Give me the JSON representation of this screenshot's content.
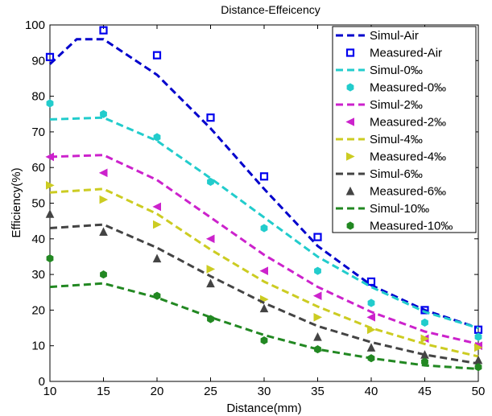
{
  "chart_data": {
    "type": "line",
    "title": "Distance-Effeicency",
    "xlabel": "Distance(mm)",
    "ylabel": "Efficiency(%)",
    "xlim": [
      10,
      50
    ],
    "ylim": [
      0,
      100
    ],
    "xticks": [
      10,
      15,
      20,
      25,
      30,
      35,
      40,
      45,
      50
    ],
    "yticks": [
      0,
      10,
      20,
      30,
      40,
      50,
      60,
      70,
      80,
      90,
      100
    ],
    "grid": false,
    "legend_position": "top-right",
    "series": [
      {
        "name": "Simul-Air",
        "kind": "line",
        "color": "#0000cc",
        "x": [
          10,
          12.5,
          15,
          20,
          25,
          30,
          35,
          40,
          45,
          50
        ],
        "y": [
          89,
          96,
          96,
          86,
          71,
          54,
          38,
          27,
          20,
          15
        ]
      },
      {
        "name": "Measured-Air",
        "kind": "marker",
        "marker": "square",
        "color": "#0000ee",
        "x": [
          10,
          15,
          20,
          25,
          30,
          35,
          40,
          45,
          50
        ],
        "y": [
          91,
          98.5,
          91.5,
          74,
          57.5,
          40.5,
          28,
          20,
          14.5
        ]
      },
      {
        "name": "Simul-0‰",
        "kind": "line",
        "color": "#22cccc",
        "x": [
          10,
          15,
          20,
          25,
          30,
          35,
          40,
          45,
          50
        ],
        "y": [
          73.5,
          74,
          67.5,
          57,
          46,
          35,
          26.5,
          19.5,
          15
        ]
      },
      {
        "name": "Measured-0‰",
        "kind": "marker",
        "marker": "hexagon",
        "color": "#22cccc",
        "x": [
          10,
          15,
          20,
          25,
          30,
          35,
          40,
          45,
          50
        ],
        "y": [
          78,
          75,
          68.5,
          56,
          43,
          31,
          22,
          16.5,
          12.5
        ]
      },
      {
        "name": "Simul-2‰",
        "kind": "line",
        "color": "#cc22cc",
        "x": [
          10,
          15,
          20,
          25,
          30,
          35,
          40,
          45,
          50
        ],
        "y": [
          63,
          63.5,
          56.5,
          46,
          35.5,
          26.5,
          19.5,
          14,
          10.5
        ]
      },
      {
        "name": "Measured-2‰",
        "kind": "marker",
        "marker": "triangle-left",
        "color": "#cc22cc",
        "x": [
          10,
          15,
          20,
          25,
          30,
          35,
          40,
          45,
          50
        ],
        "y": [
          63,
          58.5,
          49,
          40,
          31,
          24,
          18,
          12,
          10
        ]
      },
      {
        "name": "Simul-4‰",
        "kind": "line",
        "color": "#cccc22",
        "x": [
          10,
          15,
          20,
          25,
          30,
          35,
          40,
          45,
          50
        ],
        "y": [
          53,
          54,
          47,
          37,
          28,
          21,
          15,
          10.5,
          7
        ]
      },
      {
        "name": "Measured-4‰",
        "kind": "marker",
        "marker": "triangle-right",
        "color": "#cccc22",
        "x": [
          10,
          15,
          20,
          25,
          30,
          35,
          40,
          45,
          50
        ],
        "y": [
          55,
          51,
          44,
          31.5,
          23,
          18,
          14.5,
          12,
          9.5
        ]
      },
      {
        "name": "Simul-6‰",
        "kind": "line",
        "color": "#444444",
        "x": [
          10,
          15,
          20,
          25,
          30,
          35,
          40,
          45,
          50
        ],
        "y": [
          43,
          44,
          37.5,
          29.5,
          22,
          15.5,
          11,
          7.5,
          5
        ]
      },
      {
        "name": "Measured-6‰",
        "kind": "marker",
        "marker": "triangle-up",
        "color": "#444444",
        "x": [
          10,
          15,
          20,
          25,
          30,
          35,
          40,
          45,
          50
        ],
        "y": [
          47,
          42,
          34.5,
          27.5,
          20.5,
          12.5,
          9.5,
          7.5,
          6
        ]
      },
      {
        "name": "Simul-10‰",
        "kind": "line",
        "color": "#228822",
        "x": [
          10,
          15,
          20,
          25,
          30,
          35,
          40,
          45,
          50
        ],
        "y": [
          26.5,
          27.5,
          23.5,
          18,
          13,
          9,
          6.5,
          4.5,
          3.5
        ]
      },
      {
        "name": "Measured-10‰",
        "kind": "marker",
        "marker": "hexagon",
        "color": "#228822",
        "x": [
          10,
          15,
          20,
          25,
          30,
          35,
          40,
          45,
          50
        ],
        "y": [
          34.5,
          30,
          24,
          17.5,
          11.5,
          9,
          6.5,
          5.5,
          4
        ]
      }
    ]
  }
}
